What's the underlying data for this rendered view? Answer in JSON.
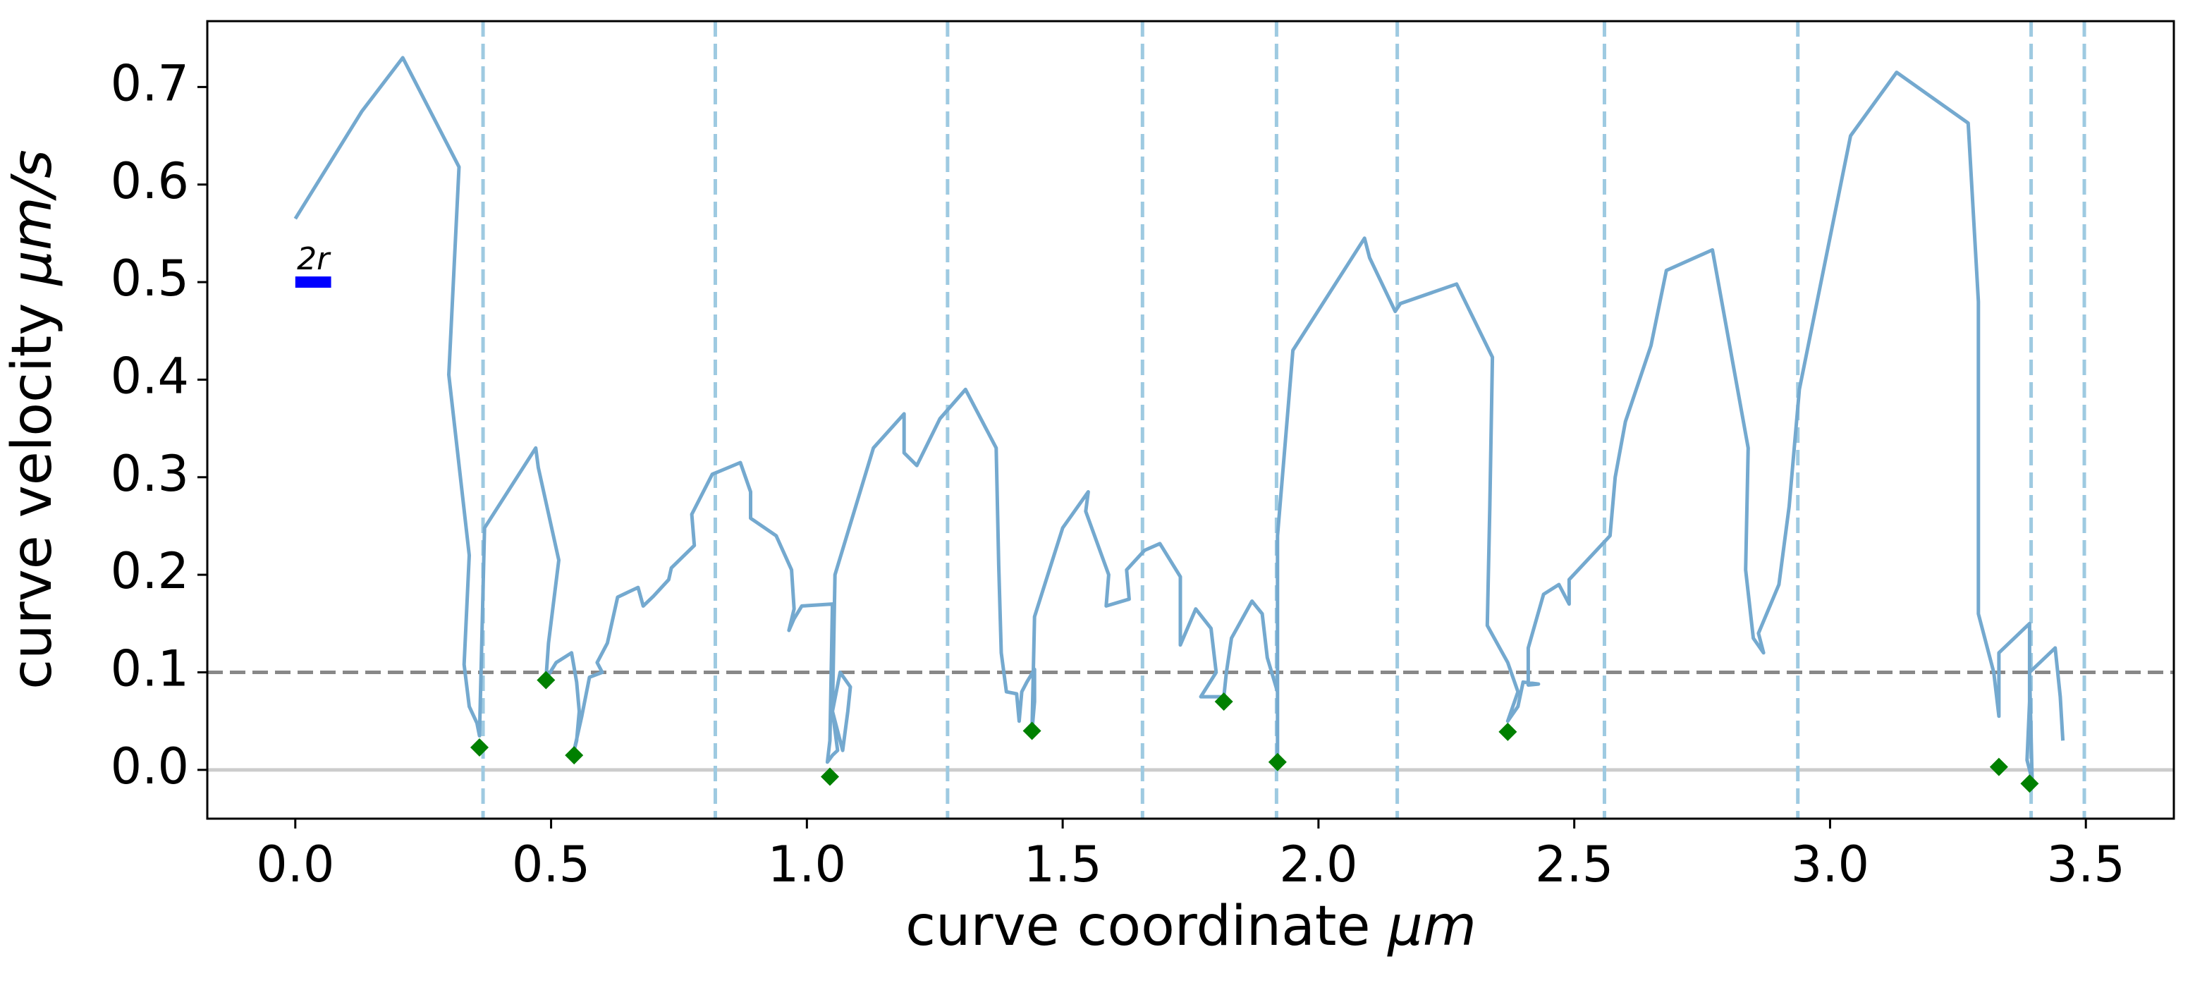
{
  "chart_data": {
    "type": "line",
    "xlabel": {
      "text": "curve coordinate",
      "unit": "μm"
    },
    "ylabel": {
      "text": "curve velocity",
      "unit": "μm/s"
    },
    "xlim": [
      -0.172,
      3.672
    ],
    "ylim": [
      -0.05,
      0.7675
    ],
    "xticks": [
      {
        "value": 0,
        "label": "0.0"
      },
      0.5,
      {
        "value": 1,
        "label": "1.0"
      },
      1.5,
      {
        "value": 2,
        "label": "2.0"
      },
      2.5,
      {
        "value": 3,
        "label": "3.0"
      },
      3.5
    ],
    "yticks": [
      {
        "value": 0,
        "label": "0.0"
      },
      0.1,
      0.2,
      0.3,
      0.4,
      0.5,
      0.6,
      0.7
    ],
    "series": [
      {
        "color": "#74a9cf",
        "x": [
          0.0,
          0.13,
          0.21,
          0.32,
          0.3,
          0.34,
          0.33,
          0.34,
          0.355,
          0.36,
          0.37,
          0.47,
          0.475,
          0.515,
          0.495,
          0.49,
          0.51,
          0.54,
          0.55,
          0.555,
          0.55,
          0.545,
          0.56,
          0.575,
          0.6,
          0.59,
          0.61,
          0.63,
          0.67,
          0.68,
          0.7,
          0.73,
          0.735,
          0.78,
          0.775,
          0.815,
          0.87,
          0.89,
          0.89,
          0.94,
          0.97,
          0.975,
          0.965,
          0.975,
          0.99,
          1.05,
          1.045,
          1.04,
          1.05,
          1.06,
          1.05,
          1.07,
          1.08,
          1.085,
          1.065,
          1.05,
          1.055,
          1.13,
          1.19,
          1.19,
          1.215,
          1.26,
          1.31,
          1.37,
          1.375,
          1.38,
          1.39,
          1.41,
          1.415,
          1.42,
          1.43,
          1.445,
          1.445,
          1.44,
          1.445,
          1.5,
          1.55,
          1.545,
          1.59,
          1.585,
          1.63,
          1.625,
          1.66,
          1.69,
          1.73,
          1.73,
          1.76,
          1.79,
          1.8,
          1.77,
          1.8,
          1.815,
          1.82,
          1.83,
          1.87,
          1.89,
          1.9,
          1.92,
          1.92,
          1.92,
          1.95,
          2.09,
          2.1,
          2.15,
          2.16,
          2.27,
          2.34,
          2.335,
          2.33,
          2.37,
          2.39,
          2.37,
          2.39,
          2.4,
          2.43,
          2.41,
          2.41,
          2.44,
          2.47,
          2.49,
          2.49,
          2.57,
          2.58,
          2.6,
          2.65,
          2.68,
          2.77,
          2.84,
          2.835,
          2.85,
          2.87,
          2.86,
          2.9,
          2.92,
          2.94,
          3.04,
          3.13,
          3.27,
          3.29,
          3.29,
          3.32,
          3.33,
          3.33,
          3.38,
          3.39,
          3.39,
          3.385,
          3.39,
          3.395,
          3.39,
          3.44,
          3.45,
          3.455
        ],
        "values": [
          0.565,
          0.675,
          0.73,
          0.618,
          0.405,
          0.22,
          0.108,
          0.065,
          0.048,
          0.035,
          0.248,
          0.33,
          0.31,
          0.215,
          0.13,
          0.093,
          0.11,
          0.12,
          0.09,
          0.06,
          0.03,
          0.02,
          0.055,
          0.095,
          0.1,
          0.11,
          0.13,
          0.177,
          0.187,
          0.168,
          0.178,
          0.195,
          0.207,
          0.23,
          0.262,
          0.303,
          0.315,
          0.285,
          0.258,
          0.24,
          0.205,
          0.165,
          0.143,
          0.155,
          0.168,
          0.17,
          0.03,
          0.008,
          0.015,
          0.02,
          0.06,
          0.02,
          0.06,
          0.085,
          0.1,
          0.06,
          0.2,
          0.33,
          0.365,
          0.325,
          0.312,
          0.36,
          0.39,
          0.33,
          0.21,
          0.12,
          0.08,
          0.078,
          0.05,
          0.08,
          0.09,
          0.103,
          0.07,
          0.04,
          0.157,
          0.248,
          0.285,
          0.265,
          0.2,
          0.168,
          0.175,
          0.205,
          0.225,
          0.232,
          0.198,
          0.128,
          0.165,
          0.145,
          0.1,
          0.075,
          0.075,
          0.075,
          0.1,
          0.135,
          0.173,
          0.16,
          0.115,
          0.08,
          0.01,
          0.24,
          0.43,
          0.545,
          0.525,
          0.47,
          0.478,
          0.498,
          0.423,
          0.27,
          0.148,
          0.11,
          0.08,
          0.05,
          0.065,
          0.09,
          0.088,
          0.087,
          0.125,
          0.18,
          0.19,
          0.17,
          0.195,
          0.24,
          0.3,
          0.357,
          0.435,
          0.512,
          0.533,
          0.33,
          0.205,
          0.135,
          0.12,
          0.14,
          0.19,
          0.27,
          0.39,
          0.65,
          0.715,
          0.663,
          0.48,
          0.16,
          0.1,
          0.055,
          0.12,
          0.145,
          0.15,
          0.07,
          0.01,
          0.0,
          -0.01,
          0.1,
          0.125,
          0.075,
          0.03
        ]
      }
    ],
    "markers": {
      "color": "#008000",
      "x": [
        0.36,
        0.49,
        0.545,
        1.045,
        1.44,
        1.815,
        1.92,
        2.37,
        3.33,
        3.39
      ],
      "values": [
        0.023,
        0.092,
        0.015,
        -0.007,
        0.04,
        0.07,
        0.008,
        0.039,
        0.003,
        -0.014
      ]
    },
    "vlines": {
      "color": "#9ecae1",
      "x": [
        0.367,
        0.821,
        1.275,
        1.656,
        1.918,
        2.154,
        2.559,
        2.937,
        3.393,
        3.497
      ]
    },
    "hlines": [
      {
        "value": 0.1,
        "color": "#888888",
        "style": "dashed"
      },
      {
        "value": 0,
        "color": "#cccccc",
        "style": "solid"
      }
    ],
    "annotation": {
      "text": "2r",
      "x": [
        0,
        0.07
      ],
      "y": 0.5,
      "color": "#0000ff"
    }
  }
}
